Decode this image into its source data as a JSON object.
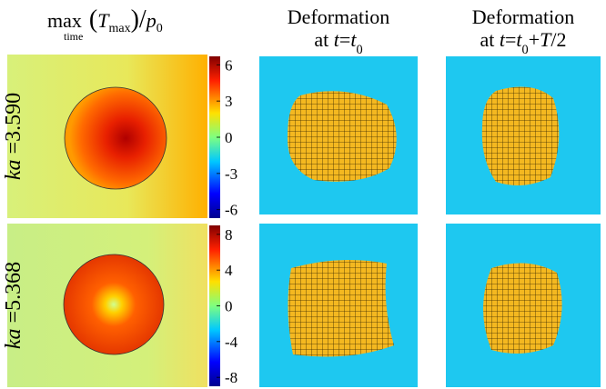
{
  "header": {
    "parts": [
      {
        "text": "max"
      },
      {
        "text": "time",
        "under": true
      },
      {
        "text": "("
      },
      {
        "text": "T",
        "italic": true
      },
      {
        "text": "max",
        "sub": true
      },
      {
        "text": ")"
      },
      {
        "text": "/"
      },
      {
        "text": "p",
        "italic": true
      },
      {
        "text": "0",
        "sub": true
      }
    ]
  },
  "columns": [
    {
      "line1": "Deformation",
      "line2": [
        {
          "text": "at "
        },
        {
          "text": "t",
          "italic": true
        },
        {
          "text": "="
        },
        {
          "text": "t",
          "italic": true
        },
        {
          "text": "0",
          "sub": true
        }
      ]
    },
    {
      "line1": "Deformation",
      "line2": [
        {
          "text": "at "
        },
        {
          "text": "t",
          "italic": true
        },
        {
          "text": "="
        },
        {
          "text": "t",
          "italic": true
        },
        {
          "text": "0",
          "sub": true
        },
        {
          "text": "+"
        },
        {
          "text": "T",
          "italic": true
        },
        {
          "text": "/2"
        }
      ]
    }
  ],
  "rows": [
    {
      "label": [
        {
          "text": "ka",
          "italic": true
        },
        {
          "text": " =3.590"
        }
      ],
      "colorbar": {
        "lim": [
          -6.7,
          6.7
        ],
        "ticks": [
          6,
          3,
          0,
          -3,
          -6
        ]
      }
    },
    {
      "label": [
        {
          "text": "ka",
          "italic": true
        },
        {
          "text": " =5.368"
        }
      ],
      "colorbar": {
        "lim": [
          -9,
          9
        ],
        "ticks": [
          8,
          4,
          0,
          -4,
          -8
        ]
      }
    }
  ]
}
